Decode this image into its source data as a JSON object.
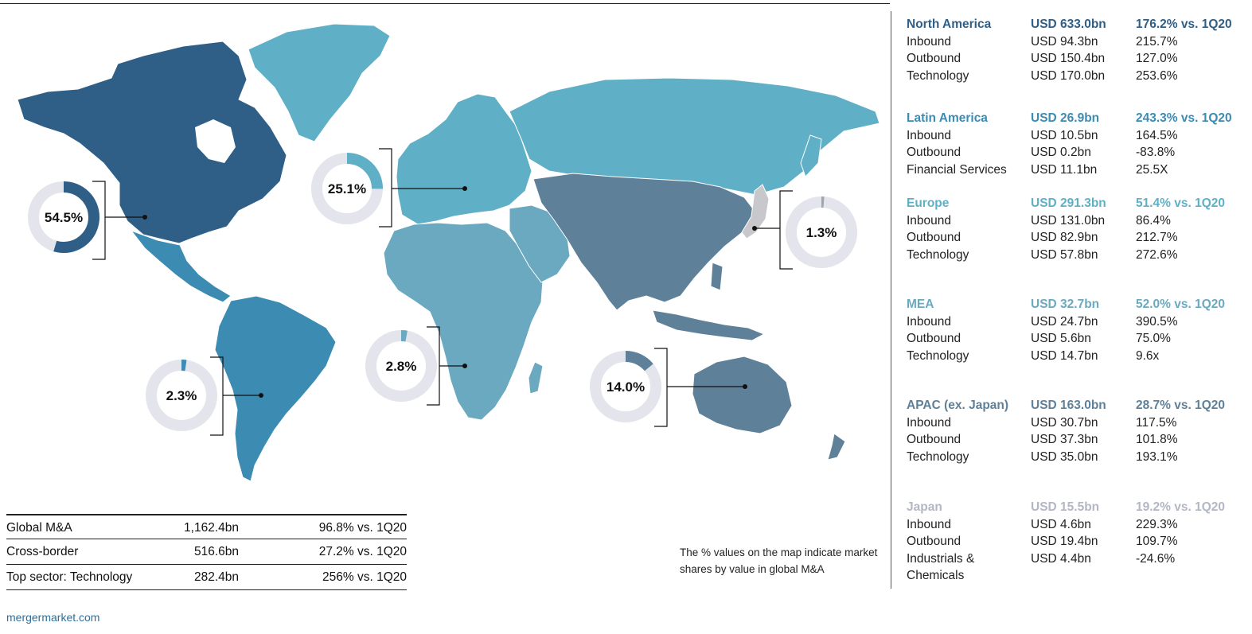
{
  "colors": {
    "north_america": "#2f5f86",
    "latin_america": "#3b8bb2",
    "europe": "#5fb0c6",
    "mea": "#6aa9c0",
    "apac": "#5e8199",
    "japan": "#c8c8cc",
    "donut_track": "#e4e4ec"
  },
  "donuts": [
    {
      "label": "54.5%",
      "share": 54.5,
      "color": "#2f5f86"
    },
    {
      "label": "25.1%",
      "share": 25.1,
      "color": "#5fb0c6"
    },
    {
      "label": "1.3%",
      "share": 1.3,
      "color": "#a0a4b0"
    },
    {
      "label": "2.3%",
      "share": 2.3,
      "color": "#3b8bb2"
    },
    {
      "label": "2.8%",
      "share": 2.8,
      "color": "#6aa9c0"
    },
    {
      "label": "14.0%",
      "share": 14.0,
      "color": "#5e8199"
    }
  ],
  "summary": [
    {
      "label": "Global M&A",
      "value": "1,162.4bn",
      "change": "96.8% vs. 1Q20"
    },
    {
      "label": "Cross-border",
      "value": "516.6bn",
      "change": "27.2% vs. 1Q20"
    },
    {
      "label": "Top sector: Technology",
      "value": "282.4bn",
      "change": "256% vs. 1Q20"
    }
  ],
  "note": "The % values on the map indicate market shares by value in global M&A",
  "footer": "mergermarket.com",
  "regions": [
    {
      "name": "North America",
      "total": "USD 633.0bn",
      "change": "176.2% vs. 1Q20",
      "color": "#2f5f86",
      "rows": [
        {
          "k": "Inbound",
          "v": "USD 94.3bn",
          "p": "215.7%"
        },
        {
          "k": "Outbound",
          "v": "USD 150.4bn",
          "p": "127.0%"
        },
        {
          "k": "Technology",
          "v": "USD 170.0bn",
          "p": "253.6%"
        }
      ]
    },
    {
      "name": "Latin America",
      "total": "USD 26.9bn",
      "change": "243.3% vs. 1Q20",
      "color": "#3b8bb2",
      "rows": [
        {
          "k": "Inbound",
          "v": "USD 10.5bn",
          "p": "164.5%"
        },
        {
          "k": "Outbound",
          "v": "USD 0.2bn",
          "p": "-83.8%"
        },
        {
          "k": "Financial Services",
          "v": "USD 11.1bn",
          "p": "25.5X"
        }
      ]
    },
    {
      "name": "Europe",
      "total": "USD 291.3bn",
      "change": "51.4% vs. 1Q20",
      "color": "#5fb0c6",
      "rows": [
        {
          "k": "Inbound",
          "v": "USD 131.0bn",
          "p": "86.4%"
        },
        {
          "k": "Outbound",
          "v": "USD 82.9bn",
          "p": "212.7%"
        },
        {
          "k": "Technology",
          "v": "USD 57.8bn",
          "p": "272.6%"
        }
      ]
    },
    {
      "name": "MEA",
      "total": "USD 32.7bn",
      "change": "52.0% vs. 1Q20",
      "color": "#6aa9c0",
      "rows": [
        {
          "k": "Inbound",
          "v": "USD 24.7bn",
          "p": "390.5%"
        },
        {
          "k": "Outbound",
          "v": "USD 5.6bn",
          "p": "75.0%"
        },
        {
          "k": "Technology",
          "v": "USD 14.7bn",
          "p": "9.6x"
        }
      ]
    },
    {
      "name": "APAC (ex. Japan)",
      "total": "USD 163.0bn",
      "change": "28.7% vs. 1Q20",
      "color": "#5e8199",
      "rows": [
        {
          "k": "Inbound",
          "v": "USD 30.7bn",
          "p": "117.5%"
        },
        {
          "k": "Outbound",
          "v": "USD 37.3bn",
          "p": "101.8%"
        },
        {
          "k": "Technology",
          "v": "USD 35.0bn",
          "p": "193.1%"
        }
      ]
    },
    {
      "name": "Japan",
      "total": "USD 15.5bn",
      "change": "19.2% vs. 1Q20",
      "color": "#b3b6c4",
      "rows": [
        {
          "k": "Inbound",
          "v": "USD 4.6bn",
          "p": "229.3%"
        },
        {
          "k": "Outbound",
          "v": "USD 19.4bn",
          "p": "109.7%"
        },
        {
          "k": "Industrials &",
          "v": "USD 4.4bn",
          "p": "-24.6%"
        },
        {
          "k": "Chemicals",
          "v": "",
          "p": ""
        }
      ]
    }
  ]
}
